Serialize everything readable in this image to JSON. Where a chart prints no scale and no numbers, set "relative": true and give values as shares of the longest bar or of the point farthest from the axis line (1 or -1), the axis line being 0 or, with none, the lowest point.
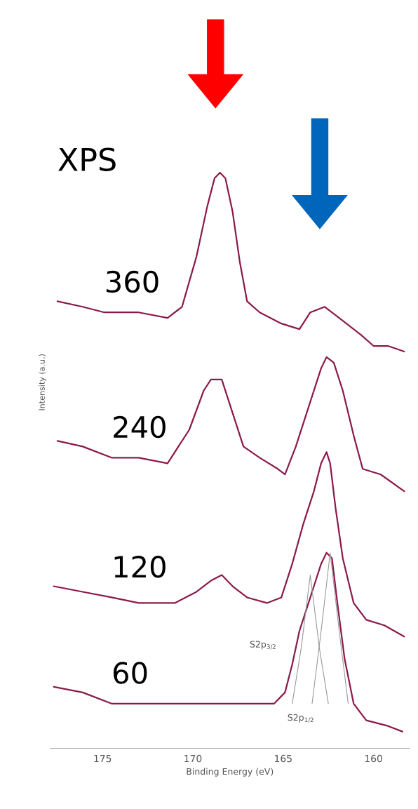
{
  "chart_data": {
    "type": "line",
    "relative": true,
    "xlabel": "Binding Energy (eV)",
    "ylabel": "Intensity (a.u.)",
    "xlim": [
      177.9,
      158.0
    ],
    "xticks": [
      175,
      170,
      165,
      160
    ],
    "grid": false,
    "legend": false,
    "marker": "none",
    "line_style": "solid",
    "annotations": [
      "XPS",
      "S2p$_{3/2}$",
      "S2p$_{1/2}$"
    ],
    "series": [
      {
        "name": "360",
        "color": "#8b1a4a",
        "x": [
          177.5,
          176.1,
          174.9,
          173.0,
          171.4,
          170.6,
          169.8,
          169.2,
          168.8,
          168.5,
          168.2,
          167.8,
          167.4,
          167.0,
          166.3,
          165.1,
          164.1,
          163.5,
          162.7,
          161.9,
          160.7,
          160.0,
          159.2,
          158.3
        ],
        "values": [
          0.77,
          0.76,
          0.75,
          0.75,
          0.74,
          0.76,
          0.85,
          0.94,
          0.99,
          1.0,
          0.99,
          0.93,
          0.84,
          0.77,
          0.75,
          0.73,
          0.72,
          0.75,
          0.76,
          0.74,
          0.71,
          0.69,
          0.69,
          0.68
        ]
      },
      {
        "name": "240",
        "color": "#8b1a4a",
        "x": [
          177.5,
          176.1,
          174.5,
          173.0,
          171.4,
          170.2,
          169.4,
          169.0,
          168.4,
          167.8,
          167.2,
          166.3,
          165.3,
          164.9,
          164.3,
          163.5,
          162.9,
          162.6,
          162.2,
          161.7,
          161.1,
          160.6,
          159.6,
          158.3
        ],
        "values": [
          0.52,
          0.51,
          0.49,
          0.49,
          0.48,
          0.54,
          0.61,
          0.63,
          0.63,
          0.57,
          0.51,
          0.49,
          0.47,
          0.46,
          0.51,
          0.59,
          0.65,
          0.67,
          0.66,
          0.61,
          0.53,
          0.47,
          0.46,
          0.43
        ]
      },
      {
        "name": "120",
        "color": "#8b1a4a",
        "x": [
          177.7,
          176.1,
          174.5,
          173.0,
          171.0,
          169.8,
          169.0,
          168.4,
          167.8,
          167.0,
          165.9,
          165.1,
          164.5,
          163.9,
          163.3,
          162.9,
          162.6,
          162.4,
          162.1,
          161.7,
          161.1,
          160.4,
          159.4,
          158.3
        ],
        "values": [
          0.26,
          0.25,
          0.24,
          0.23,
          0.23,
          0.25,
          0.27,
          0.28,
          0.26,
          0.24,
          0.23,
          0.24,
          0.3,
          0.37,
          0.43,
          0.48,
          0.5,
          0.48,
          0.4,
          0.31,
          0.23,
          0.2,
          0.19,
          0.17
        ]
      },
      {
        "name": "60",
        "color": "#8b1a4a",
        "x": [
          177.7,
          176.1,
          174.5,
          173.0,
          171.0,
          169.0,
          167.0,
          165.5,
          164.9,
          164.5,
          164.1,
          163.7,
          163.3,
          162.9,
          162.6,
          162.3,
          162.0,
          161.6,
          161.1,
          160.4,
          159.2,
          158.4
        ],
        "values": [
          0.08,
          0.07,
          0.05,
          0.05,
          0.05,
          0.05,
          0.05,
          0.05,
          0.07,
          0.12,
          0.18,
          0.22,
          0.26,
          0.3,
          0.32,
          0.31,
          0.23,
          0.13,
          0.05,
          0.02,
          0.01,
          0.0
        ]
      },
      {
        "color": "#999999",
        "x": [
          164.5,
          164.0,
          163.5,
          163.0,
          162.5
        ],
        "values": [
          0.05,
          0.15,
          0.28,
          0.15,
          0.05
        ]
      },
      {
        "color": "#999999",
        "x": [
          163.4,
          162.9,
          162.4,
          161.9,
          161.4
        ],
        "values": [
          0.05,
          0.18,
          0.32,
          0.18,
          0.05
        ]
      }
    ]
  }
}
